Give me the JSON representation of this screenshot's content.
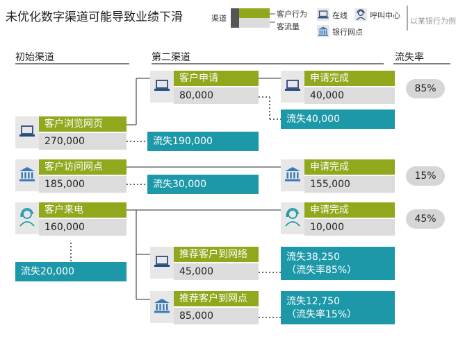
{
  "title": "未优化数字渠道可能导致业绩下滑",
  "legend": {
    "channel": "渠道",
    "customer_behavior": "客户行为",
    "customer_flow": "客流量",
    "online": "在线",
    "call_center": "呼叫中心",
    "bank_branch": "银行网点",
    "example": "以某银行为例"
  },
  "columns": {
    "initial": "初始渠道",
    "second": "第二渠道",
    "loss_rate": "流失率"
  },
  "initial_channels": [
    {
      "title": "客户浏览网页",
      "value": "270,000",
      "icon": "laptop-icon"
    },
    {
      "title": "客户访问网点",
      "value": "185,000",
      "icon": "bank-icon"
    },
    {
      "title": "客户来电",
      "value": "160,000",
      "icon": "agent-icon"
    }
  ],
  "second_channels": [
    {
      "title": "客户申请",
      "value": "80,000",
      "icon": "laptop-icon"
    },
    {
      "title": "推荐客户到网络",
      "value": "45,000",
      "icon": "laptop-icon"
    },
    {
      "title": "推荐客户到网点",
      "value": "85,000",
      "icon": "bank-icon"
    }
  ],
  "completions": [
    {
      "title": "申请完成",
      "value": "40,000",
      "icon": "laptop-icon"
    },
    {
      "title": "申请完成",
      "value": "155,000",
      "icon": "bank-icon"
    },
    {
      "title": "申请完成",
      "value": "10,000",
      "icon": "agent-icon"
    }
  ],
  "losses": [
    {
      "line1": "流失190,000"
    },
    {
      "line1": "流失30,000"
    },
    {
      "line1": "流失20,000"
    },
    {
      "line1": "流失40,000"
    },
    {
      "line1": "流失38,250",
      "line2": "（流失率85%）"
    },
    {
      "line1": "流失12,750",
      "line2": "（流失率15%）"
    }
  ],
  "loss_rates": [
    "85%",
    "15%",
    "45%"
  ],
  "colors": {
    "green": "#8fa81c",
    "teal": "#1d98a9",
    "grey": "#dcdcdc"
  }
}
